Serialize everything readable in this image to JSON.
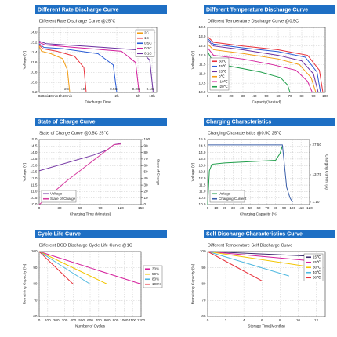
{
  "chart_data": [
    {
      "type": "line",
      "title": "Different Rate Discharge Curve",
      "subtitle": "Different Rate Discharge Curve @25℃",
      "xlabel": "Discharge Time",
      "ylabel": "Voltage (V)",
      "xlim": [
        0,
        10
      ],
      "xticks": [
        0,
        {
          "value": 0.5,
          "label": "20min"
        },
        {
          "value": 1.2,
          "label": "40min"
        },
        {
          "value": 1.8,
          "label": "1h"
        },
        {
          "value": 2.4,
          "label": "60min"
        },
        {
          "value": 6.6,
          "label": "2h"
        },
        {
          "value": 8.4,
          "label": "5h"
        },
        {
          "value": 9.6,
          "label": "10h"
        }
      ],
      "ylim": [
        9.2,
        14.4
      ],
      "yticks": [
        9.2,
        {
          "value": 10,
          "label": "10.0"
        },
        10.8,
        11.6,
        12.4,
        13.2,
        {
          "value": 14,
          "label": "14.0"
        }
      ],
      "grid": true,
      "legend": "upper right",
      "end_labels": true,
      "series": [
        {
          "name": "2C",
          "color": "#f39c12",
          "x": [
            0,
            0.2,
            1,
            2,
            2.4,
            2.6
          ],
          "values": [
            12.9,
            12.5,
            12.3,
            11.9,
            11.0,
            9.2
          ]
        },
        {
          "name": "1C",
          "color": "#e8303a",
          "x": [
            0,
            0.3,
            1.5,
            3,
            3.8,
            4.0
          ],
          "values": [
            13.0,
            12.7,
            12.5,
            12.1,
            11.2,
            9.2
          ]
        },
        {
          "name": "0.5C",
          "color": "#2a5cd6",
          "x": [
            0,
            0.4,
            2,
            5,
            6.3,
            6.6
          ],
          "values": [
            13.1,
            12.8,
            12.7,
            12.3,
            11.4,
            9.2
          ]
        },
        {
          "name": "0.2C",
          "color": "#d41f9c",
          "x": [
            0,
            0.5,
            3,
            7,
            8.2,
            8.5
          ],
          "values": [
            13.2,
            13.0,
            12.8,
            12.5,
            11.6,
            9.2
          ]
        },
        {
          "name": "0.1C",
          "color": "#6b2fa0",
          "x": [
            0,
            0.6,
            4,
            8.5,
            9.4,
            9.7
          ],
          "values": [
            13.3,
            13.1,
            12.9,
            12.6,
            11.8,
            9.2
          ]
        }
      ]
    },
    {
      "type": "line",
      "title": "Different Temperature Discharge Curve",
      "subtitle": "Different Temperature Discharge Curve @0.5C",
      "xlabel": "Capacity(%rated)",
      "ylabel": "Voltage (V)",
      "xlim": [
        0,
        100
      ],
      "xticks": [
        0,
        10,
        20,
        30,
        40,
        50,
        60,
        70,
        80,
        90,
        100
      ],
      "ylim": [
        10,
        13.5
      ],
      "yticks": [
        {
          "value": 10,
          "label": "10.0"
        },
        10.5,
        {
          "value": 11,
          "label": "11.0"
        },
        11.5,
        {
          "value": 12,
          "label": "12.0"
        },
        12.5,
        {
          "value": 13,
          "label": "13.0"
        },
        13.5
      ],
      "grid": true,
      "legend": "lower left",
      "series": [
        {
          "name": "60℃",
          "color": "#e8303a",
          "x": [
            0,
            5,
            30,
            60,
            85,
            95,
            98
          ],
          "values": [
            13.0,
            12.7,
            12.5,
            12.3,
            12.0,
            11.2,
            10.0
          ]
        },
        {
          "name": "45℃",
          "color": "#2a5cd6",
          "x": [
            0,
            5,
            30,
            60,
            83,
            93,
            96
          ],
          "values": [
            12.9,
            12.6,
            12.4,
            12.2,
            11.9,
            11.1,
            10.0
          ]
        },
        {
          "name": "25℃",
          "color": "#6b2fa0",
          "x": [
            0,
            5,
            30,
            60,
            80,
            90,
            94
          ],
          "values": [
            12.8,
            12.5,
            12.3,
            12.0,
            11.7,
            11.0,
            10.0
          ]
        },
        {
          "name": "0℃",
          "color": "#f39c12",
          "x": [
            0,
            5,
            30,
            60,
            78,
            88,
            92
          ],
          "values": [
            12.6,
            12.3,
            12.1,
            11.8,
            11.5,
            10.8,
            10.0
          ]
        },
        {
          "name": "-10℃",
          "color": "#d41f9c",
          "x": [
            0,
            5,
            30,
            55,
            75,
            85,
            89
          ],
          "values": [
            12.4,
            12.0,
            11.8,
            11.5,
            11.2,
            10.6,
            10.0
          ]
        },
        {
          "name": "-20℃",
          "color": "#1f9e4a",
          "x": [
            0,
            5,
            20,
            45,
            62,
            68,
            70
          ],
          "values": [
            12.2,
            11.6,
            11.4,
            11.1,
            10.8,
            10.4,
            10.0
          ]
        }
      ]
    },
    {
      "type": "line",
      "title": "State of Charge Curve",
      "subtitle": "State of Charge Curve @0.5C 25℃",
      "xlabel": "Charging Time (Minutes)",
      "ylabel": "Voltage (V)",
      "y2label": "State of Charge",
      "xlim": [
        0,
        150
      ],
      "xticks": [
        0,
        30,
        60,
        90,
        120,
        150
      ],
      "ylim": [
        10,
        15
      ],
      "yticks": [
        {
          "value": 10,
          "label": "10.0"
        },
        10.5,
        {
          "value": 11,
          "label": "11.0"
        },
        11.5,
        {
          "value": 12,
          "label": "12.0"
        },
        12.5,
        {
          "value": 13,
          "label": "13.0"
        },
        13.5,
        {
          "value": 14,
          "label": "14.0"
        },
        14.5,
        {
          "value": 15,
          "label": "15.0"
        }
      ],
      "y2lim": [
        0,
        100
      ],
      "y2ticks": [
        0,
        10,
        20,
        30,
        40,
        50,
        60,
        70,
        80,
        90,
        100
      ],
      "grid": true,
      "legend": "lower left",
      "series": [
        {
          "name": "Voltage",
          "color": "#7b3fa8",
          "x": [
            0,
            20,
            40,
            60,
            80,
            100,
            110,
            120
          ],
          "values": [
            12.6,
            12.9,
            13.2,
            13.5,
            13.8,
            14.2,
            14.6,
            14.7
          ]
        },
        {
          "name": "State of Charge",
          "color": "#d63ca0",
          "axis": "y2",
          "x": [
            0,
            20,
            40,
            60,
            80,
            100,
            110,
            120
          ],
          "values": [
            0,
            18,
            36,
            52,
            68,
            84,
            92,
            93
          ]
        }
      ]
    },
    {
      "type": "line",
      "title": "Charging Characteristics",
      "subtitle": "Charging Characteristics @0.5C 25℃",
      "xlabel": "Charging Capacity (%)",
      "ylabel": "Voltage (V)",
      "y2label": "Charging Current (A)",
      "xlim": [
        0,
        120
      ],
      "xticks": [
        0,
        10,
        20,
        30,
        40,
        50,
        60,
        70,
        80,
        90,
        100,
        110,
        120
      ],
      "ylim": [
        10,
        15
      ],
      "yticks": [
        {
          "value": 10,
          "label": "10.0"
        },
        10.5,
        {
          "value": 11,
          "label": "11.0"
        },
        11.5,
        {
          "value": 12,
          "label": "12.0"
        },
        12.5,
        {
          "value": 13,
          "label": "13.0"
        },
        13.5,
        {
          "value": 14,
          "label": "14.0"
        },
        14.5,
        {
          "value": 15,
          "label": "15.0"
        }
      ],
      "y2lim": [
        0,
        30
      ],
      "y2ticks": [
        {
          "value": 1.1,
          "label": "1.10"
        },
        13.75,
        {
          "value": 27.5,
          "label": "27.50"
        }
      ],
      "grid": true,
      "legend": "lower left",
      "series": [
        {
          "name": "Voltage",
          "color": "#1f9e4a",
          "x": [
            0,
            2,
            5,
            20,
            50,
            80,
            85,
            88
          ],
          "values": [
            10.0,
            12.6,
            13.1,
            13.2,
            13.3,
            13.4,
            13.9,
            14.5
          ]
        },
        {
          "name": "Charging Current",
          "color": "#3a5ea8",
          "axis": "y2",
          "x": [
            0,
            20,
            50,
            88,
            90,
            93,
            97,
            100
          ],
          "values": [
            27.5,
            27.5,
            27.5,
            27.5,
            20,
            8,
            3,
            1.1
          ]
        }
      ]
    },
    {
      "type": "line",
      "title": "Cycle Life Curve",
      "subtitle": "Different DOD Discharge Cycle Life Curve @1C",
      "xlabel": "Number of Cycles",
      "ylabel": "Remaining Capacity (%)",
      "xlim": [
        0,
        1200
      ],
      "xticks": [
        0,
        100,
        200,
        300,
        400,
        500,
        600,
        700,
        800,
        900,
        1000,
        1100,
        1200
      ],
      "ylim": [
        60,
        100
      ],
      "yticks": [
        60,
        70,
        80,
        90,
        100
      ],
      "grid": true,
      "legend": "outside right",
      "series": [
        {
          "name": "30%",
          "color": "#d41f9c",
          "x": [
            0,
            1200
          ],
          "values": [
            100,
            80
          ]
        },
        {
          "name": "50%",
          "color": "#f2c500",
          "x": [
            0,
            800
          ],
          "values": [
            100,
            80
          ]
        },
        {
          "name": "80%",
          "color": "#4fb8e0",
          "x": [
            0,
            600
          ],
          "values": [
            100,
            80
          ]
        },
        {
          "name": "100%",
          "color": "#e8303a",
          "x": [
            0,
            400
          ],
          "values": [
            100,
            80
          ]
        }
      ]
    },
    {
      "type": "line",
      "title": "Self Discharge Characteristics Curve",
      "subtitle": "Different Temperature Self Discharge Curve",
      "xlabel": "Storage Time(Months)",
      "ylabel": "Remaining Capacity (%)",
      "xlim": [
        0,
        13
      ],
      "xticks": [
        0,
        2,
        4,
        6,
        8,
        10,
        12
      ],
      "ylim": [
        60,
        100
      ],
      "yticks": [
        60,
        70,
        80,
        90,
        100
      ],
      "grid": true,
      "legend": "upper right",
      "series": [
        {
          "name": "15℃",
          "color": "#3d2a6e",
          "x": [
            0,
            12
          ],
          "values": [
            100,
            97
          ]
        },
        {
          "name": "25℃",
          "color": "#d41f9c",
          "x": [
            0,
            12
          ],
          "values": [
            100,
            94
          ]
        },
        {
          "name": "30℃",
          "color": "#f2c500",
          "x": [
            0,
            12
          ],
          "values": [
            100,
            90
          ]
        },
        {
          "name": "40℃",
          "color": "#4fb8e0",
          "x": [
            0,
            9
          ],
          "values": [
            100,
            85
          ]
        },
        {
          "name": "50℃",
          "color": "#e8303a",
          "x": [
            0,
            6
          ],
          "values": [
            100,
            82
          ]
        }
      ]
    }
  ]
}
